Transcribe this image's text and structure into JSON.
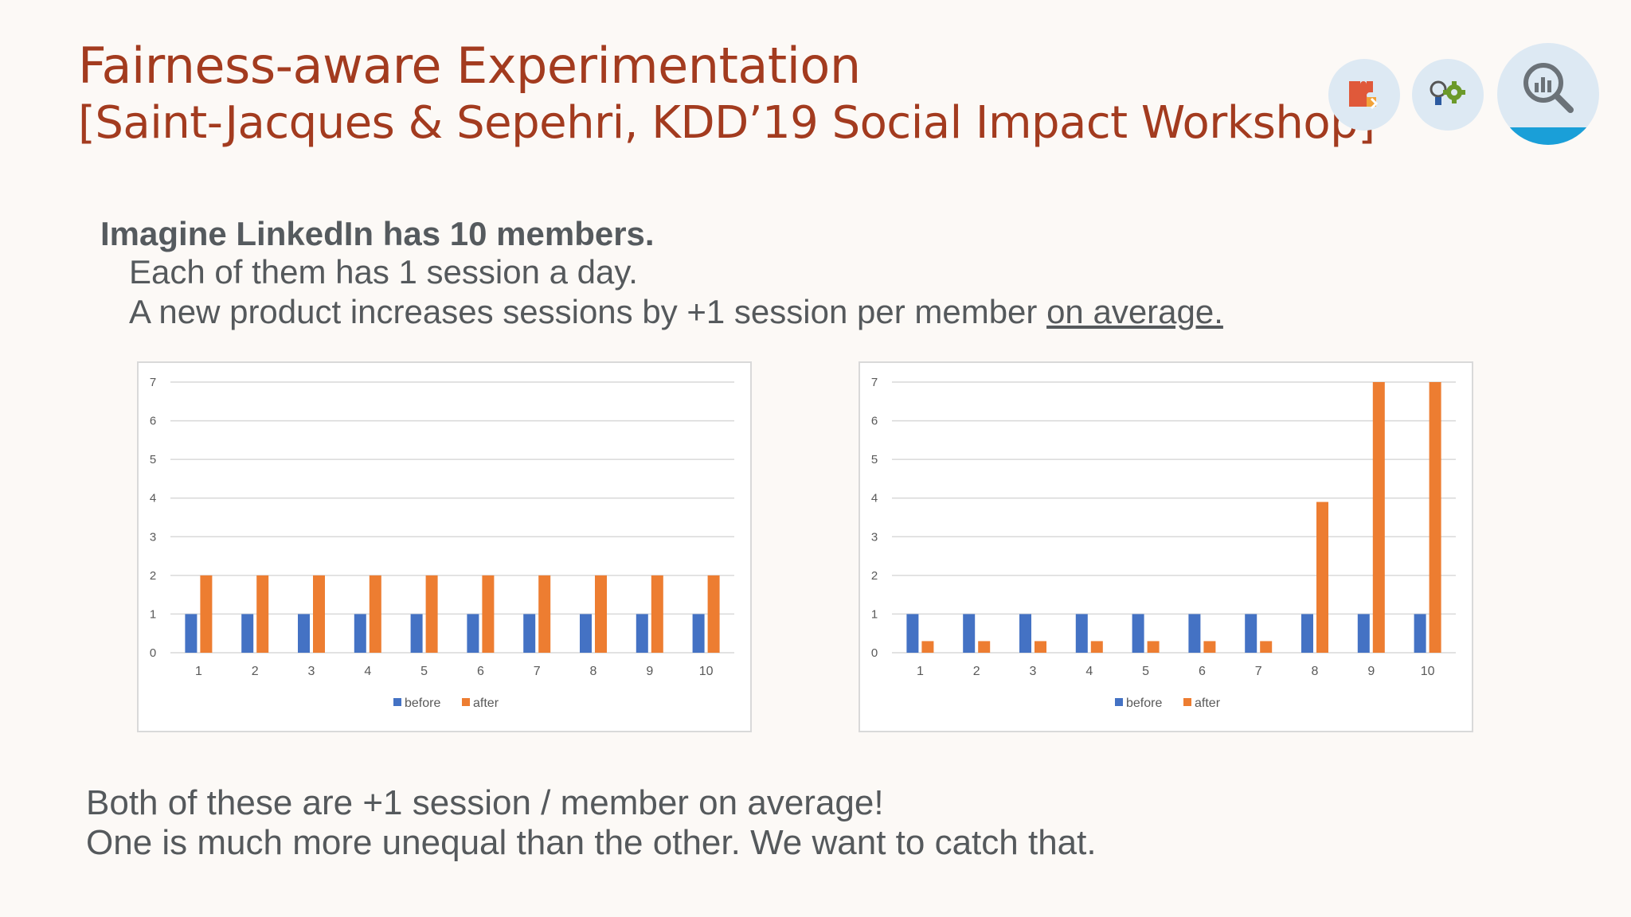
{
  "slide": {
    "title": "Fairness-aware Experimentation",
    "subtitle": "[Saint-Jacques & Sepehri, KDD’19 Social Impact Workshop]",
    "icons": [
      "puzzle-icon",
      "lightbulb-gear-icon",
      "magnifier-chart-icon"
    ],
    "colors": {
      "title": "#a33b1f",
      "before": "#4472c4",
      "after": "#ed7d31",
      "icon_bg": "#dde9f3",
      "icon_accent": "#1a9fd8"
    }
  },
  "body": {
    "bold_line": "Imagine LinkedIn has 10 members.",
    "line2": "Each of them has 1 session a day.",
    "line3_prefix": "A new product increases sessions by +1 session per member ",
    "line3_underlined": "on average."
  },
  "bottom": {
    "line1": "Both of these are +1 session / member on average!",
    "line2": "One is much more unequal than the other. We want to catch that."
  },
  "chart_data": [
    {
      "type": "bar",
      "title": "",
      "categories": [
        "1",
        "2",
        "3",
        "4",
        "5",
        "6",
        "7",
        "8",
        "9",
        "10"
      ],
      "series": [
        {
          "name": "before",
          "color": "#4472c4",
          "values": [
            1,
            1,
            1,
            1,
            1,
            1,
            1,
            1,
            1,
            1
          ]
        },
        {
          "name": "after",
          "color": "#ed7d31",
          "values": [
            2,
            2,
            2,
            2,
            2,
            2,
            2,
            2,
            2,
            2
          ]
        }
      ],
      "yticks": [
        "0",
        "1",
        "2",
        "3",
        "4",
        "5",
        "6",
        "7"
      ],
      "ylim": [
        0,
        7
      ],
      "grid": true,
      "legend": "bottom"
    },
    {
      "type": "bar",
      "title": "",
      "categories": [
        "1",
        "2",
        "3",
        "4",
        "5",
        "6",
        "7",
        "8",
        "9",
        "10"
      ],
      "series": [
        {
          "name": "before",
          "color": "#4472c4",
          "values": [
            1,
            1,
            1,
            1,
            1,
            1,
            1,
            1,
            1,
            1
          ]
        },
        {
          "name": "after",
          "color": "#ed7d31",
          "values": [
            0.3,
            0.3,
            0.3,
            0.3,
            0.3,
            0.3,
            0.3,
            3.9,
            7,
            7
          ]
        }
      ],
      "yticks": [
        "0",
        "1",
        "2",
        "3",
        "4",
        "5",
        "6",
        "7"
      ],
      "ylim": [
        0,
        7
      ],
      "grid": true,
      "legend": "bottom"
    }
  ]
}
